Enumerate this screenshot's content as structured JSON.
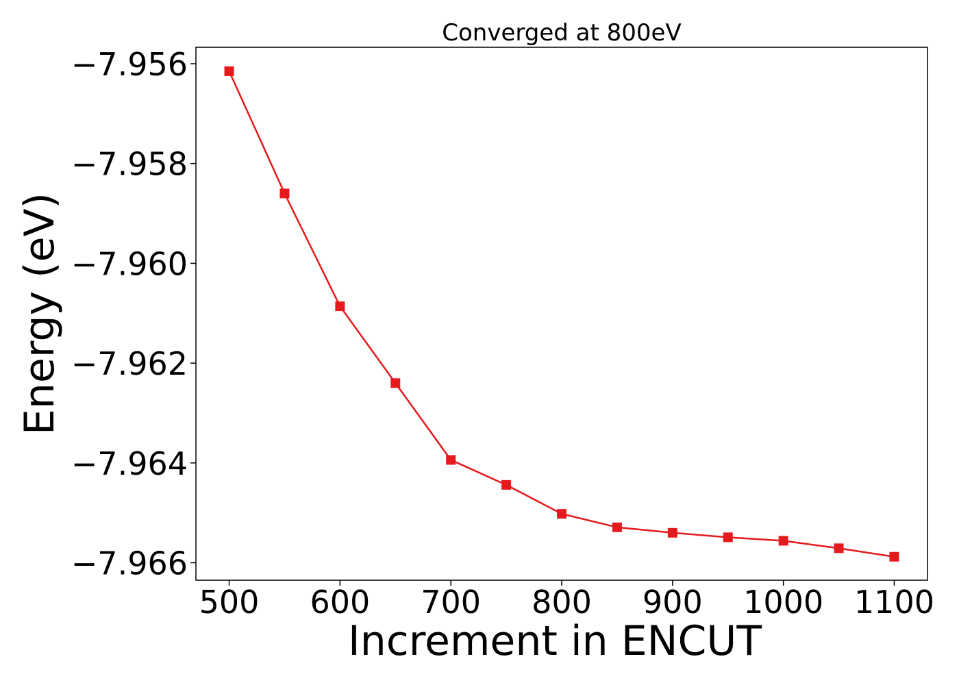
{
  "chart_data": {
    "type": "line",
    "title": "Converged at 800eV",
    "xlabel": "Increment in ENCUT",
    "ylabel": "Energy (eV)",
    "x": [
      500,
      550,
      600,
      650,
      700,
      750,
      800,
      850,
      900,
      950,
      1000,
      1050,
      1100
    ],
    "series": [
      {
        "values": [
          -7.95615,
          -7.9586,
          -7.96086,
          -7.9624,
          -7.96394,
          -7.96444,
          -7.96502,
          -7.96529,
          -7.9654,
          -7.96549,
          -7.96556,
          -7.96571,
          -7.96588
        ],
        "color": "#e41a1c",
        "marker": "square"
      }
    ],
    "xlim": [
      470,
      1130
    ],
    "ylim": [
      -7.96635,
      -7.95567
    ],
    "x_ticks": [
      500,
      600,
      700,
      800,
      900,
      1000,
      1100
    ],
    "x_tick_labels": [
      "500",
      "600",
      "700",
      "800",
      "900",
      "1000",
      "1100"
    ],
    "y_ticks": [
      -7.956,
      -7.958,
      -7.96,
      -7.962,
      -7.964,
      -7.966
    ],
    "y_tick_labels": [
      "−7.956",
      "−7.958",
      "−7.960",
      "−7.962",
      "−7.964",
      "−7.966"
    ],
    "grid": false,
    "legend": "none"
  }
}
